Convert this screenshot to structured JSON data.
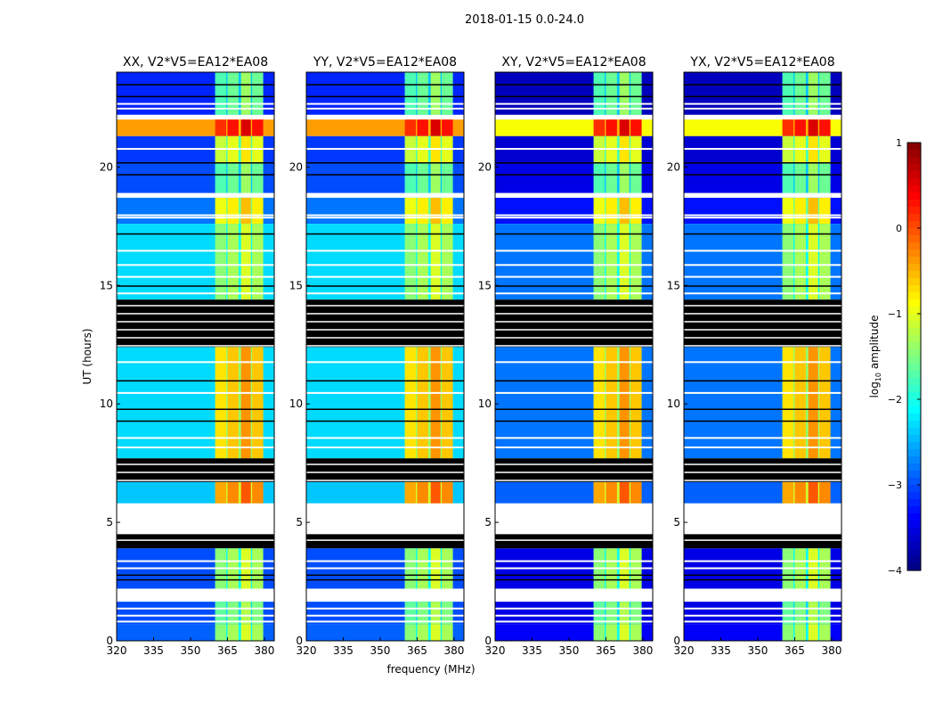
{
  "chart_data": {
    "type": "heatmap",
    "title": "2018-01-15 0.0-24.0",
    "xlabel": "frequency (MHz)",
    "ylabel": "UT (hours)",
    "xlim": [
      320,
      384
    ],
    "ylim": [
      0,
      24
    ],
    "xticks": [
      "320",
      "335",
      "350",
      "365",
      "380"
    ],
    "xtick_values": [
      320,
      335,
      350,
      365,
      380
    ],
    "yticks": [
      "0",
      "5",
      "10",
      "15",
      "20"
    ],
    "ytick_values": [
      0,
      5,
      10,
      15,
      20
    ],
    "colorbar": {
      "label_main": "log",
      "label_sub": "10",
      "label_rest": " amplitude",
      "range": [
        -4,
        1
      ],
      "ticks": [
        "1",
        "0",
        "−1",
        "−2",
        "−3",
        "−4"
      ],
      "tick_values": [
        1,
        0,
        -1,
        -2,
        -3,
        -4
      ],
      "colormap": "jet"
    },
    "rfi_columns_mhz": [
      [
        360,
        364.5
      ],
      [
        365,
        369.5
      ],
      [
        370.5,
        374.5
      ],
      [
        375,
        379.5
      ]
    ],
    "panels": [
      {
        "title": "XX, V2*V5=EA12*EA08",
        "bg_offset": 0
      },
      {
        "title": "YY, V2*V5=EA12*EA08",
        "bg_offset": 0
      },
      {
        "title": "XY, V2*V5=EA12*EA08",
        "bg_offset": -0.5
      },
      {
        "title": "YX, V2*V5=EA12*EA08",
        "bg_offset": -0.5
      }
    ],
    "segments_hours": [
      {
        "from": 22.2,
        "to": 24.0,
        "bg": -3.2,
        "band": -1.6
      },
      {
        "from": 22.0,
        "to": 22.2,
        "flag": "white"
      },
      {
        "from": 21.3,
        "to": 22.0,
        "bg": -0.4,
        "band": 0.3
      },
      {
        "from": 20.2,
        "to": 21.3,
        "bg": -3.1,
        "band": -1.0
      },
      {
        "from": 18.9,
        "to": 20.2,
        "bg": -3.0,
        "band": -1.6
      },
      {
        "from": 18.7,
        "to": 18.9,
        "flag": "white"
      },
      {
        "from": 17.6,
        "to": 18.7,
        "bg": -2.8,
        "band": -0.8
      },
      {
        "from": 14.4,
        "to": 17.6,
        "bg": -2.3,
        "band": -1.3
      },
      {
        "from": 12.4,
        "to": 14.4,
        "flag": "black"
      },
      {
        "from": 7.7,
        "to": 12.4,
        "bg": -2.3,
        "band": -0.6
      },
      {
        "from": 6.7,
        "to": 7.7,
        "flag": "black"
      },
      {
        "from": 5.8,
        "to": 6.7,
        "bg": -2.4,
        "band": -0.3
      },
      {
        "from": 4.5,
        "to": 5.8,
        "flag": "white"
      },
      {
        "from": 3.9,
        "to": 4.5,
        "flag": "black"
      },
      {
        "from": 2.2,
        "to": 3.9,
        "bg": -3.0,
        "band": -1.3
      },
      {
        "from": 1.65,
        "to": 2.2,
        "flag": "white"
      },
      {
        "from": 0.7,
        "to": 1.65,
        "bg": -3.0,
        "band": -1.5
      },
      {
        "from": 0.0,
        "to": 0.7,
        "bg": -2.9,
        "band": -1.3
      }
    ],
    "white_lines_hours": [
      22.5,
      22.7,
      20.8,
      18.0,
      17.9,
      16.5,
      15.9,
      15.4,
      14.7,
      11.8,
      10.5,
      8.6,
      8.2,
      5.2,
      3.4,
      3.1,
      1.4,
      1.1,
      0.85
    ],
    "black_lines_hours": [
      23.5,
      23.0,
      20.2,
      19.7,
      17.2,
      15.0,
      11.0,
      9.8,
      9.3,
      2.8,
      2.6
    ]
  }
}
